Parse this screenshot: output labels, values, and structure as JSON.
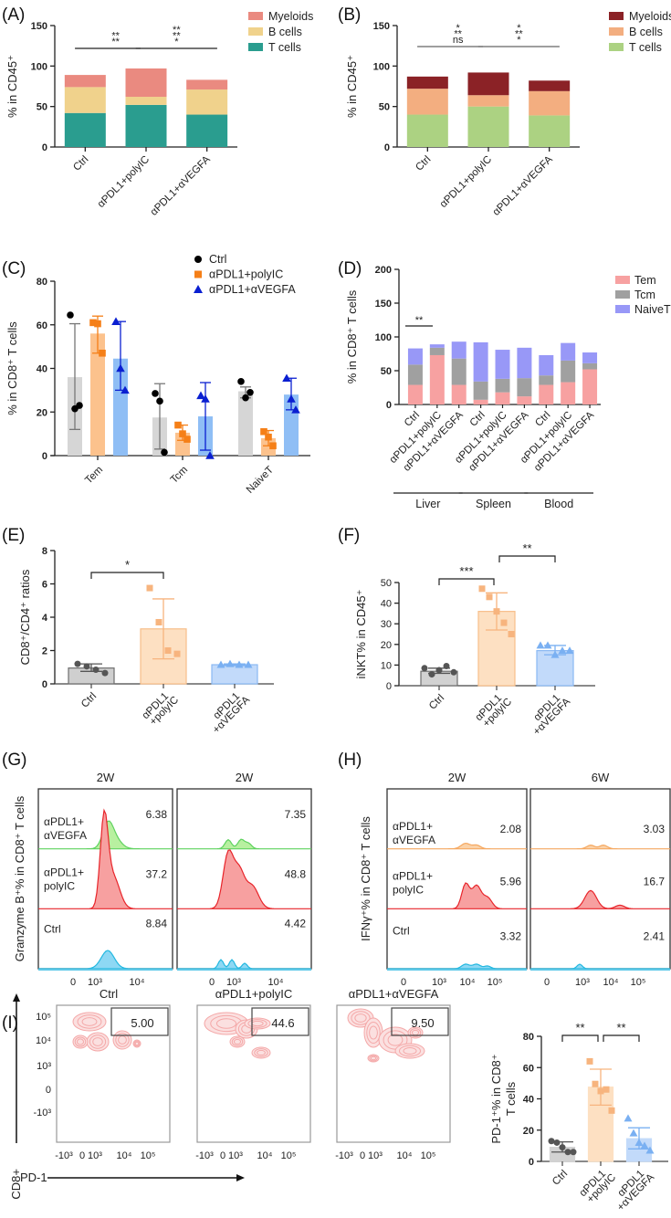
{
  "panels": {
    "A": {
      "label": "(A)"
    },
    "B": {
      "label": "(B)"
    },
    "C": {
      "label": "(C)"
    },
    "D": {
      "label": "(D)"
    },
    "E": {
      "label": "(E)"
    },
    "F": {
      "label": "(F)"
    },
    "G": {
      "label": "(G)"
    },
    "H": {
      "label": "(H)"
    },
    "I": {
      "label": "(I)"
    }
  },
  "chart_data": [
    {
      "id": "A",
      "type": "bar",
      "stacked": true,
      "categories": [
        "Ctrl",
        "αPDL1+polyIC",
        "αPDL1+αVEGFA"
      ],
      "series": [
        {
          "name": "T cells",
          "color": "#2a9d8f",
          "values": [
            42,
            52,
            40
          ]
        },
        {
          "name": "B cells",
          "color": "#f0d28c",
          "values": [
            32,
            10,
            31
          ]
        },
        {
          "name": "Myeloids",
          "color": "#ea8a80",
          "values": [
            15,
            35,
            12
          ]
        }
      ],
      "ylabel": "% in CD45⁺",
      "ylim": [
        0,
        150
      ],
      "yticks": [
        0,
        50,
        100,
        150
      ],
      "legend": "top-right",
      "significance": [
        {
          "from": 0,
          "to": 1,
          "marks": [
            {
              "text": "**",
              "color": "#ea8a80"
            },
            {
              "text": "**",
              "color": "#f0d28c"
            }
          ]
        },
        {
          "from": 1,
          "to": 2,
          "marks": [
            {
              "text": "**",
              "color": "#ea8a80"
            },
            {
              "text": "**",
              "color": "#f0d28c"
            },
            {
              "text": "*",
              "color": "#2a9d8f"
            }
          ]
        }
      ]
    },
    {
      "id": "B",
      "type": "bar",
      "stacked": true,
      "categories": [
        "Ctrl",
        "αPDL1+polyIC",
        "αPDL1+αVEGFA"
      ],
      "series": [
        {
          "name": "T cells",
          "color": "#acd282",
          "values": [
            40,
            50,
            39
          ]
        },
        {
          "name": "B cells",
          "color": "#f3ae80",
          "values": [
            32,
            14,
            30
          ]
        },
        {
          "name": "Myeloids",
          "color": "#8b2226",
          "values": [
            15,
            28,
            13
          ]
        }
      ],
      "ylabel": "% in CD45⁺",
      "ylim": [
        0,
        150
      ],
      "yticks": [
        0,
        50,
        100,
        150
      ],
      "legend": "top-right",
      "significance": [
        {
          "from": 0,
          "to": 1,
          "marks": [
            {
              "text": "*",
              "color": "#8b2226"
            },
            {
              "text": "**",
              "color": "#f3ae80"
            },
            {
              "text": "ns",
              "color": "#acd282"
            }
          ]
        },
        {
          "from": 1,
          "to": 2,
          "marks": [
            {
              "text": "*",
              "color": "#8b2226"
            },
            {
              "text": "**",
              "color": "#f3ae80"
            },
            {
              "text": "*",
              "color": "#acd282"
            }
          ]
        }
      ]
    },
    {
      "id": "C",
      "type": "bar",
      "grouped": true,
      "categories": [
        "Tem",
        "Tcm",
        "NaiveT"
      ],
      "series": [
        {
          "name": "Ctrl",
          "marker": "circle",
          "color": "#000000",
          "bar_color": "#d6d6d6",
          "means": [
            36,
            17.5,
            29.5
          ],
          "sd_low": [
            12,
            3,
            26.5
          ],
          "sd_high": [
            60.5,
            33,
            31.5
          ],
          "points": [
            [
              64.5,
              21.5,
              23
            ],
            [
              28.5,
              25,
              1.5
            ],
            [
              34,
              26.5,
              29
            ]
          ]
        },
        {
          "name": "αPDL1+polyIC",
          "marker": "square",
          "color": "#f57f17",
          "bar_color": "#fcc28d",
          "means": [
            56,
            10.5,
            8
          ],
          "sd_low": [
            47,
            7,
            4.5
          ],
          "sd_high": [
            64,
            14,
            11.5
          ],
          "points": [
            [
              61,
              60.5,
              47
            ],
            [
              14,
              10,
              7.5
            ],
            [
              11,
              8.5,
              4.5
            ]
          ]
        },
        {
          "name": "αPDL1+αVEGFA",
          "marker": "triangle",
          "color": "#0a1fd1",
          "bar_color": "#8fbef5",
          "means": [
            44.5,
            18,
            28
          ],
          "sd_low": [
            30,
            2.5,
            21
          ],
          "sd_high": [
            61.5,
            33.5,
            35.5
          ],
          "points": [
            [
              61.5,
              40,
              30
            ],
            [
              27.5,
              26,
              0
            ],
            [
              35.5,
              26,
              21
            ]
          ]
        }
      ],
      "ylabel": "% in CD8⁺ T cells",
      "ylim": [
        0,
        80
      ],
      "yticks": [
        0,
        20,
        40,
        60,
        80
      ],
      "legend": "top-right"
    },
    {
      "id": "D",
      "type": "bar",
      "stacked": true,
      "categories": [
        "Ctrl",
        "αPDL1+polyIC",
        "αPDL1+αVEGFA",
        "Ctrl",
        "αPDL1+polyIC",
        "αPDL1+αVEGFA",
        "Ctrl",
        "αPDL1+polyIC",
        "αPDL1+αVEGFA"
      ],
      "groups": [
        {
          "name": "Liver",
          "span": [
            0,
            2
          ]
        },
        {
          "name": "Spleen",
          "span": [
            3,
            5
          ]
        },
        {
          "name": "Blood",
          "span": [
            6,
            8
          ]
        }
      ],
      "series": [
        {
          "name": "Tem",
          "color": "#f7a1a1",
          "values": [
            29,
            73,
            29,
            7,
            18,
            12,
            29,
            33,
            52
          ]
        },
        {
          "name": "Tcm",
          "color": "#a0a0a0",
          "values": [
            30,
            11,
            39,
            27,
            20,
            27,
            14,
            32,
            9
          ]
        },
        {
          "name": "NaiveT",
          "color": "#9898f7",
          "values": [
            24,
            5,
            25,
            58,
            43,
            45,
            30,
            26,
            16
          ]
        }
      ],
      "ylabel": "% in CD8⁺ T cells",
      "ylim": [
        0,
        200
      ],
      "yticks": [
        0,
        50,
        100,
        150,
        200
      ],
      "legend": "top-right",
      "significance": [
        {
          "from": 0,
          "to": 1,
          "marks": [
            {
              "text": "**",
              "color": "#f08cf0"
            }
          ]
        }
      ]
    },
    {
      "id": "E",
      "type": "bar",
      "categories": [
        "Ctrl",
        "αPDL1\n+polyIC",
        "αPDL1\n+αVEGFA"
      ],
      "means": [
        0.95,
        3.3,
        1.15
      ],
      "sd_low": [
        0.75,
        1.5,
        1.1
      ],
      "sd_high": [
        1.2,
        5.1,
        1.2
      ],
      "points": [
        [
          1.2,
          1.05,
          0.85,
          0.65
        ],
        [
          5.75,
          3.7,
          2.0,
          1.8
        ],
        [
          1.15,
          1.2,
          1.15,
          1.15
        ]
      ],
      "bar_colors": [
        "#cfcfcf",
        "#fde0c2",
        "#c2dafa"
      ],
      "edge_colors": [
        "#6e6e6e",
        "#f7be8a",
        "#8ab8f2"
      ],
      "point_colors": [
        "#555555",
        "#f7b47e",
        "#7ab0f2"
      ],
      "markers": [
        "circle",
        "square",
        "triangle"
      ],
      "ylabel": "CD8⁺/CD4⁺ ratios",
      "ylim": [
        0,
        8
      ],
      "yticks": [
        0,
        2,
        4,
        6,
        8
      ],
      "significance": [
        {
          "from": 0,
          "to": 1,
          "text": "*"
        }
      ]
    },
    {
      "id": "F",
      "type": "bar",
      "categories": [
        "Ctrl",
        "αPDL1\n+polyIC",
        "αPDL1\n+αVEGFA"
      ],
      "means": [
        7,
        36,
        17
      ],
      "sd_low": [
        6,
        27,
        15
      ],
      "sd_high": [
        8.5,
        45,
        19.5
      ],
      "points": [
        [
          8.5,
          5.5,
          7.5,
          9.5,
          6.5
        ],
        [
          47,
          43,
          36,
          30.5,
          25
        ],
        [
          19.5,
          19.5,
          15,
          17,
          17
        ]
      ],
      "bar_colors": [
        "#d2d2d2",
        "#fde0c2",
        "#c2dafa"
      ],
      "edge_colors": [
        "#6e6e6e",
        "#f7be8a",
        "#8ab8f2"
      ],
      "point_colors": [
        "#555555",
        "#f7b47e",
        "#7ab0f2"
      ],
      "markers": [
        "circle",
        "square",
        "triangle"
      ],
      "ylabel": "iNKT% in CD45⁺",
      "ylim": [
        0,
        50
      ],
      "yticks": [
        0,
        10,
        20,
        30,
        40,
        50
      ],
      "significance": [
        {
          "from": 0,
          "to": 1,
          "text": "***"
        },
        {
          "from": 1,
          "to": 2,
          "text": "**"
        }
      ]
    },
    {
      "id": "G",
      "type": "histogram",
      "ylabel": "Granzyme B⁺% in CD8⁺ T cells",
      "xticks": [
        "0",
        "10³",
        "10⁴"
      ],
      "columns": [
        {
          "title": "2W",
          "values": {
            "αPDL1+αVEGFA": "6.38",
            "αPDL1+polyIC": "37.2",
            "Ctrl": "8.84"
          }
        },
        {
          "title": "2W",
          "values": {
            "αPDL1+αVEGFA": "7.35",
            "αPDL1+polyIC": "48.8",
            "Ctrl": "4.42"
          }
        }
      ],
      "rows": [
        {
          "name": "αPDL1+αVEGFA",
          "label_lines": [
            "αPDL1+",
            "αVEGFA"
          ],
          "color": "#5fd25f",
          "fill": "#b8f0a0"
        },
        {
          "name": "αPDL1+polyIC",
          "label_lines": [
            "αPDL1+",
            "polyIC"
          ],
          "color": "#e8242a",
          "fill": "#f7a0a0"
        },
        {
          "name": "Ctrl",
          "label_lines": [
            "Ctrl"
          ],
          "color": "#22b8e0",
          "fill": "#8ed8f4"
        }
      ]
    },
    {
      "id": "H",
      "type": "histogram",
      "ylabel": "IFNγ⁺% in CD8⁺ T cells",
      "xticks": [
        "0",
        "10³",
        "10⁴",
        "10⁵"
      ],
      "columns": [
        {
          "title": "2W",
          "values": {
            "αPDL1+αVEGFA": "2.08",
            "αPDL1+polyIC": "5.96",
            "Ctrl": "3.32"
          }
        },
        {
          "title": "6W",
          "values": {
            "αPDL1+αVEGFA": "3.03",
            "αPDL1+polyIC": "16.7",
            "Ctrl": "2.41"
          }
        }
      ],
      "rows": [
        {
          "name": "αPDL1+αVEGFA",
          "label_lines": [
            "αPDL1+",
            "αVEGFA"
          ],
          "color": "#f5a860",
          "fill": "#fbd2a8"
        },
        {
          "name": "αPDL1+polyIC",
          "label_lines": [
            "αPDL1+",
            "polyIC"
          ],
          "color": "#e8242a",
          "fill": "#f7a0a0"
        },
        {
          "name": "Ctrl",
          "label_lines": [
            "Ctrl"
          ],
          "color": "#22b8e0",
          "fill": "#8ed8f4"
        }
      ]
    },
    {
      "id": "I-flow",
      "type": "scatter",
      "xlabel": "PD-1",
      "ylabel": "CD8+",
      "xticks": [
        "-10³",
        "0",
        "10³",
        "10⁴",
        "10⁵"
      ],
      "yticks": [
        "10⁵",
        "10⁴",
        "10³",
        "0",
        "-10³"
      ],
      "plots": [
        {
          "title": "Ctrl",
          "gate_value": "5.00"
        },
        {
          "title": "αPDL1+polyIC",
          "gate_value": "44.6"
        },
        {
          "title": "αPDL1+αVEGFA",
          "gate_value": "9.50"
        }
      ]
    },
    {
      "id": "I-bar",
      "type": "bar",
      "categories": [
        "Ctrl",
        "αPDL1\n+polyIC",
        "αPDL1\n+αVEGFA"
      ],
      "means": [
        9,
        47.5,
        14.5
      ],
      "sd_low": [
        6,
        36,
        8
      ],
      "sd_high": [
        12.5,
        59,
        21.5
      ],
      "points": [
        [
          13,
          12,
          9,
          6,
          6
        ],
        [
          64,
          49.5,
          45,
          46,
          32.5
        ],
        [
          27.5,
          18,
          12,
          10,
          7
        ]
      ],
      "bar_colors": [
        "#d2d2d2",
        "#fde0c2",
        "#c2dafa"
      ],
      "edge_colors": [
        "#d2d2d2",
        "#fde0c2",
        "#c2dafa"
      ],
      "point_colors": [
        "#555555",
        "#f7b47e",
        "#7ab0f2"
      ],
      "markers": [
        "circle",
        "square",
        "triangle"
      ],
      "ylabel": "PD-1⁺% in CD8⁺ T cells",
      "ylim": [
        0,
        80
      ],
      "yticks": [
        0,
        20,
        40,
        60,
        80
      ],
      "significance": [
        {
          "from": 0,
          "to": 1,
          "text": "**"
        },
        {
          "from": 1,
          "to": 2,
          "text": "**"
        }
      ]
    }
  ]
}
